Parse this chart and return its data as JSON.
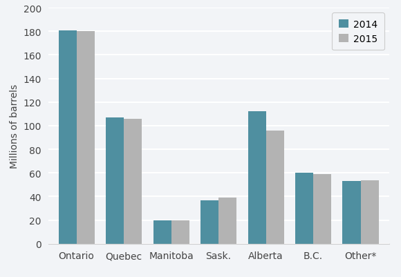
{
  "categories": [
    "Ontario",
    "Quebec",
    "Manitoba",
    "Sask.",
    "Alberta",
    "B.C.",
    "Other*"
  ],
  "values_2014": [
    181,
    107,
    20,
    37,
    112,
    60,
    53
  ],
  "values_2015": [
    180,
    106,
    20,
    39,
    96,
    59,
    54
  ],
  "color_2014": "#4f8fa0",
  "color_2015": "#b3b3b3",
  "ylabel": "Millions of barrels",
  "ylim": [
    0,
    200
  ],
  "yticks": [
    0,
    20,
    40,
    60,
    80,
    100,
    120,
    140,
    160,
    180,
    200
  ],
  "legend_labels": [
    "2014",
    "2015"
  ],
  "bar_width": 0.38,
  "background_color": "#f2f4f7",
  "grid_color": "#ffffff",
  "tick_label_fontsize": 10,
  "ylabel_fontsize": 10
}
